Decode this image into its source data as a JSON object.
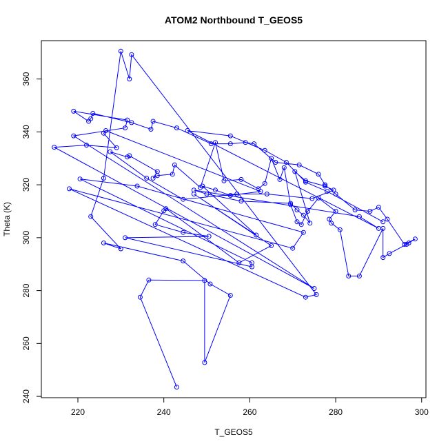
{
  "chart_data": {
    "type": "scatter",
    "title": "ATOM2 Northbound T_GEOS5",
    "xlabel": "T_GEOS5",
    "ylabel": "Theta (K)",
    "xlim": [
      211.5,
      301
    ],
    "ylim": [
      239.5,
      374.5
    ],
    "xticks": [
      220,
      240,
      260,
      280,
      300
    ],
    "yticks": [
      240,
      260,
      280,
      300,
      320,
      340,
      360
    ],
    "grid": false,
    "color": "#0000ff",
    "series": [
      {
        "points": [
          [
            243.0,
            243.5
          ],
          [
            234.5,
            277.5
          ],
          [
            236.5,
            284.0
          ],
          [
            249.5,
            283.8
          ],
          [
            249.5,
            252.8
          ],
          [
            255.5,
            278.2
          ],
          [
            250.8,
            282.5
          ],
          [
            244.5,
            291.2
          ],
          [
            226.0,
            298.0
          ],
          [
            230.0,
            295.8
          ],
          [
            223.0,
            308.0
          ],
          [
            226.0,
            322.5
          ],
          [
            230.0,
            370.5
          ],
          [
            232.0,
            360.0
          ],
          [
            232.5,
            369.2
          ],
          [
            275.5,
            278.5
          ],
          [
            273.0,
            277.5
          ],
          [
            218.0,
            318.5
          ],
          [
            270.0,
            296.0
          ],
          [
            272.5,
            302.0
          ],
          [
            233.8,
            319.5
          ],
          [
            220.5,
            322.2
          ],
          [
            260.5,
            290.5
          ],
          [
            260.5,
            289.0
          ],
          [
            231.0,
            300.0
          ],
          [
            250.5,
            300.5
          ],
          [
            244.5,
            302.0
          ],
          [
            238.0,
            305.0
          ],
          [
            240.0,
            310.2
          ],
          [
            240.5,
            311.0
          ],
          [
            257.5,
            290.5
          ],
          [
            265.0,
            297.0
          ],
          [
            247.0,
            316.5
          ],
          [
            261.5,
            301.0
          ],
          [
            249.0,
            319.5
          ],
          [
            252.0,
            318.0
          ],
          [
            255.5,
            316.0
          ],
          [
            262.5,
            317.5
          ],
          [
            226.5,
            340.5
          ],
          [
            226.0,
            339.5
          ],
          [
            229.0,
            334.0
          ],
          [
            222.0,
            335.0
          ],
          [
            214.5,
            334.2
          ],
          [
            275.0,
            280.8
          ],
          [
            219.0,
            338.5
          ],
          [
            231.0,
            341.5
          ],
          [
            231.5,
            344.5
          ],
          [
            219.0,
            347.8
          ],
          [
            222.5,
            344.0
          ],
          [
            223.0,
            345.0
          ],
          [
            223.5,
            347.0
          ],
          [
            232.5,
            343.5
          ],
          [
            237.0,
            341.0
          ],
          [
            237.5,
            344.0
          ],
          [
            243.0,
            341.5
          ],
          [
            251.0,
            335.5
          ],
          [
            255.5,
            335.5
          ],
          [
            259.0,
            336.0
          ],
          [
            261.0,
            335.5
          ],
          [
            266.0,
            328.5
          ],
          [
            271.5,
            327.5
          ],
          [
            276.0,
            324.0
          ],
          [
            277.5,
            320.0
          ],
          [
            280.0,
            316.5
          ],
          [
            284.5,
            310.5
          ],
          [
            288.0,
            310.0
          ],
          [
            290.0,
            311.5
          ],
          [
            292.0,
            307.0
          ],
          [
            296.0,
            297.5
          ],
          [
            298.5,
            299.5
          ],
          [
            297.0,
            298.0
          ],
          [
            296.5,
            297.5
          ],
          [
            292.5,
            294.0
          ],
          [
            291.0,
            292.5
          ],
          [
            291.0,
            303.5
          ],
          [
            285.5,
            285.5
          ],
          [
            283.0,
            285.5
          ],
          [
            281.0,
            303.0
          ],
          [
            279.0,
            305.5
          ],
          [
            278.5,
            307.0
          ],
          [
            280.0,
            310.0
          ],
          [
            276.0,
            315.0
          ],
          [
            273.5,
            310.0
          ],
          [
            272.0,
            305.0
          ],
          [
            271.0,
            306.0
          ],
          [
            269.5,
            312.5
          ],
          [
            268.0,
            326.5
          ],
          [
            267.0,
            322.0
          ],
          [
            265.0,
            330.0
          ],
          [
            263.5,
            320.5
          ],
          [
            262.0,
            318.5
          ],
          [
            258.0,
            322.0
          ],
          [
            254.0,
            321.5
          ],
          [
            252.0,
            336.0
          ],
          [
            248.5,
            319.0
          ],
          [
            242.5,
            327.5
          ],
          [
            242.0,
            324.0
          ],
          [
            238.5,
            323.5
          ],
          [
            237.5,
            322.5
          ],
          [
            238.5,
            325.0
          ],
          [
            232.0,
            331.0
          ],
          [
            231.5,
            330.5
          ],
          [
            227.5,
            332.5
          ],
          [
            236.0,
            322.5
          ],
          [
            244.5,
            314.5
          ],
          [
            257.0,
            316.5
          ],
          [
            264.0,
            316.5
          ],
          [
            274.5,
            314.8
          ],
          [
            279.5,
            318.0
          ],
          [
            277.5,
            319.5
          ],
          [
            273.0,
            321.5
          ],
          [
            270.5,
            325.0
          ],
          [
            274.0,
            305.5
          ],
          [
            272.5,
            308.5
          ],
          [
            271.0,
            310.5
          ],
          [
            269.5,
            313.0
          ],
          [
            258.0,
            313.8
          ],
          [
            250.0,
            316.5
          ],
          [
            247.0,
            318.0
          ],
          [
            285.5,
            308.0
          ],
          [
            290.0,
            303.5
          ],
          [
            245.5,
            340.5
          ],
          [
            255.5,
            338.5
          ],
          [
            263.5,
            333.0
          ],
          [
            268.5,
            328.5
          ],
          [
            273.0,
            321.0
          ],
          [
            278.0,
            317.5
          ],
          [
            291.0,
            306.0
          ]
        ]
      }
    ]
  }
}
